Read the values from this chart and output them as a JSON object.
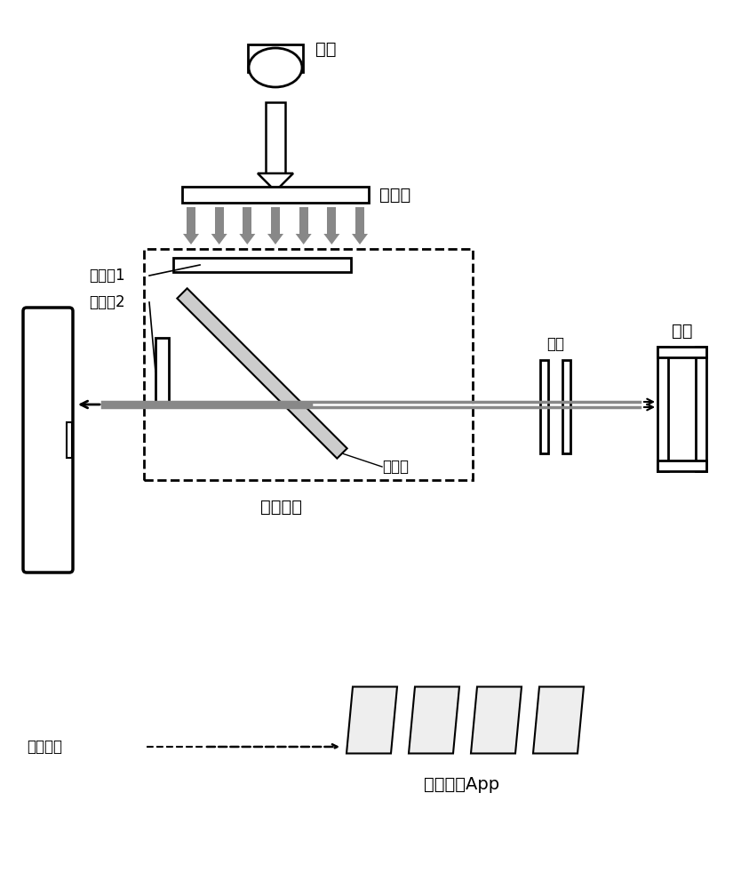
{
  "bg_color": "#ffffff",
  "text_color": "#000000",
  "line_color": "#000000",
  "gray_color": "#888888",
  "light_gray": "#cccccc",
  "labels": {
    "light_source": "光源",
    "collimator": "准直镜",
    "filter1": "滤光牱1",
    "filter2": "滤光牱2",
    "filter_group": "滤光片组",
    "beam_splitter": "分束器",
    "objective": "物镜",
    "sample": "样本",
    "smartphone": "智能手机",
    "app": "图像分析App"
  },
  "font_size": 14
}
